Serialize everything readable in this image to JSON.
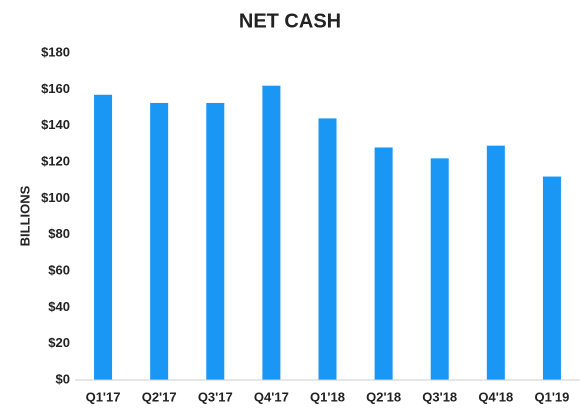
{
  "chart_data": {
    "type": "bar",
    "title": "NET CASH",
    "y_label": "BILLIONS",
    "categories": [
      "Q1'17",
      "Q2'17",
      "Q3'17",
      "Q4'17",
      "Q1'18",
      "Q2'18",
      "Q3'18",
      "Q4'18",
      "Q1'19"
    ],
    "values": [
      157,
      152.5,
      152.5,
      162,
      144,
      128,
      122,
      129,
      112
    ],
    "color": "#1a96f5",
    "ylim": [
      0,
      180
    ],
    "yticks": [
      {
        "value": 0,
        "label": "$0"
      },
      {
        "value": 20,
        "label": "$20"
      },
      {
        "value": 40,
        "label": "$40"
      },
      {
        "value": 60,
        "label": "$60"
      },
      {
        "value": 80,
        "label": "$80"
      },
      {
        "value": 100,
        "label": "$100"
      },
      {
        "value": 120,
        "label": "$120"
      },
      {
        "value": 140,
        "label": "$140"
      },
      {
        "value": 160,
        "label": "$160"
      },
      {
        "value": 180,
        "label": "$180"
      }
    ],
    "grid": false
  }
}
